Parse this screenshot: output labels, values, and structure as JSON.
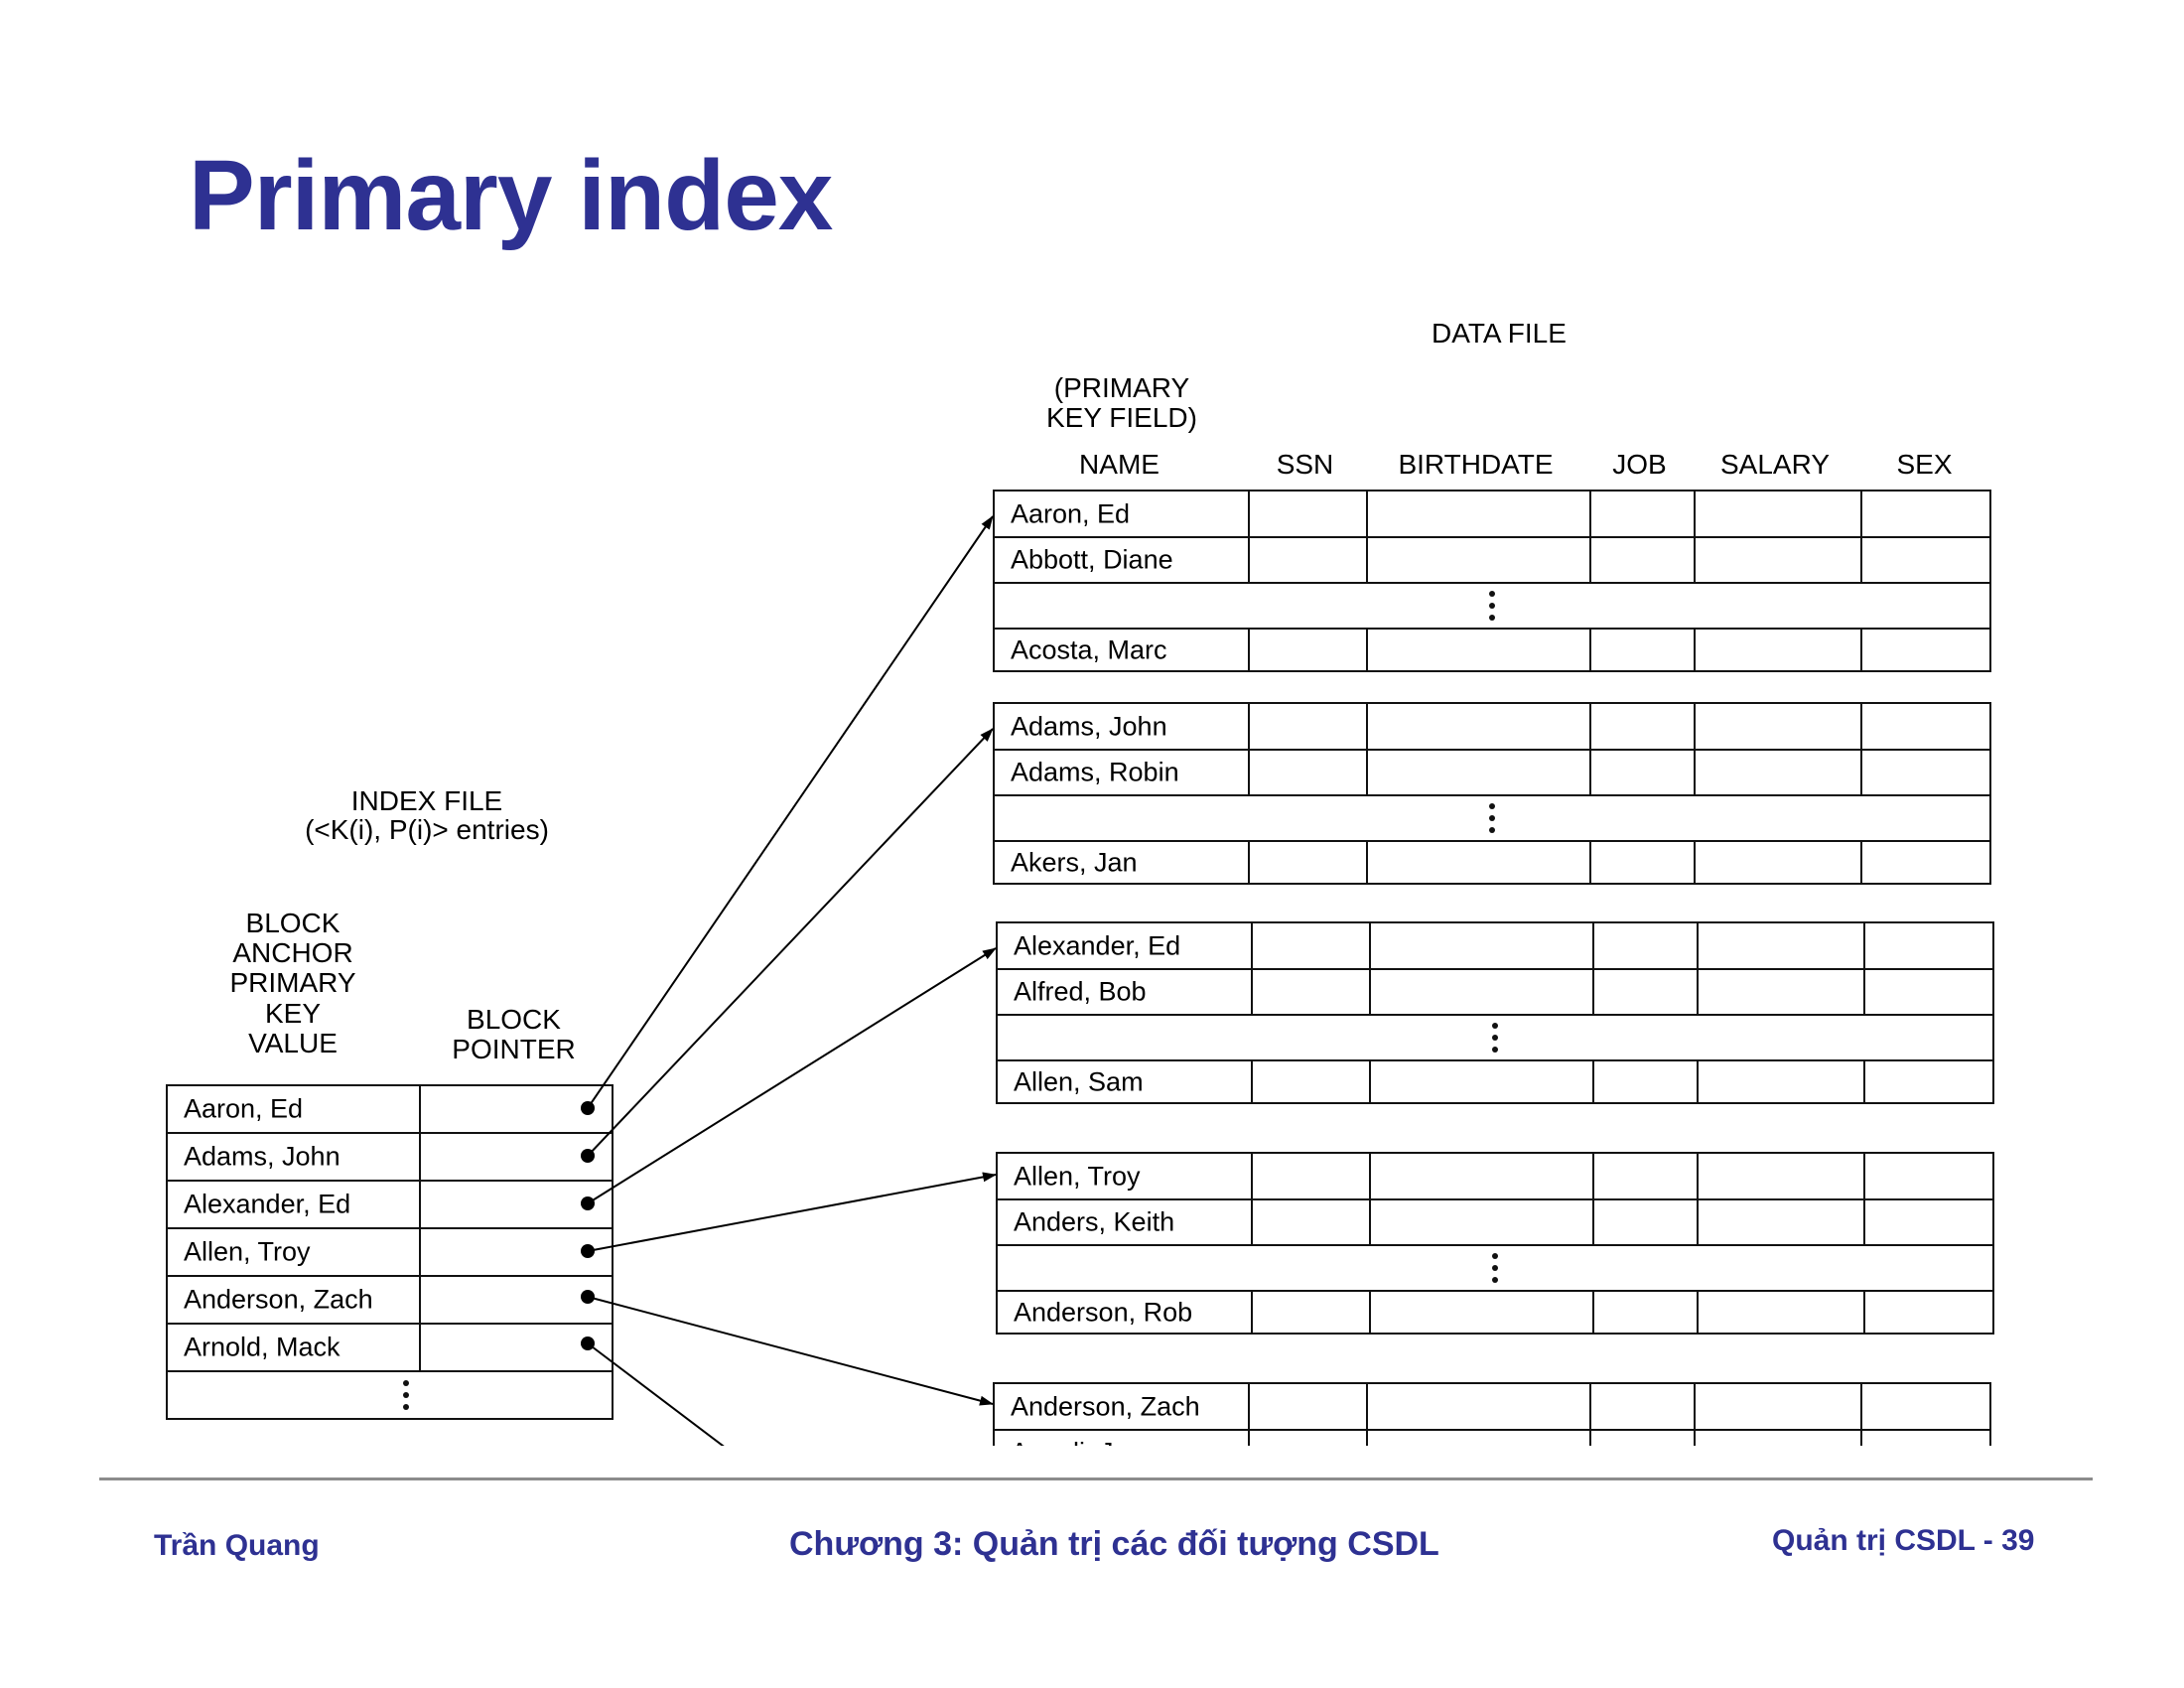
{
  "title": "Primary index",
  "data_file": {
    "title": "DATA FILE",
    "key_note": "(PRIMARY\nKEY FIELD)",
    "columns": [
      "NAME",
      "SSN",
      "BIRTHDATE",
      "JOB",
      "SALARY",
      "SEX"
    ],
    "blocks": [
      {
        "rows": [
          "Aaron, Ed",
          "Abbott, Diane",
          "⋮",
          "Acosta, Marc"
        ]
      },
      {
        "rows": [
          "Adams, John",
          "Adams, Robin",
          "⋮",
          "Akers, Jan"
        ]
      },
      {
        "rows": [
          "Alexander, Ed",
          "Alfred, Bob",
          "⋮",
          "Allen, Sam"
        ]
      },
      {
        "rows": [
          "Allen, Troy",
          "Anders, Keith",
          "⋮",
          "Anderson, Rob"
        ]
      },
      {
        "rows": [
          "Anderson, Zach",
          "Angeli, Joe"
        ]
      }
    ]
  },
  "index_file": {
    "title": "INDEX FILE",
    "subtitle": "(<K(i), P(i)> entries)",
    "col_key": "BLOCK\nANCHOR\nPRIMARY\nKEY\nVALUE",
    "col_pointer": "BLOCK\nPOINTER",
    "entries": [
      "Aaron, Ed",
      "Adams, John",
      "Alexander, Ed",
      "Allen, Troy",
      "Anderson, Zach",
      "Arnold, Mack"
    ]
  },
  "footer": {
    "author": "Trần Quang",
    "chapter": "Chương 3: Quản trị các đối tượng CSDL",
    "page": "Quản trị CSDL - 39"
  },
  "colors": {
    "title": "#2e3192",
    "footer_text": "#2e3192",
    "rule": "#8c8c8c"
  }
}
